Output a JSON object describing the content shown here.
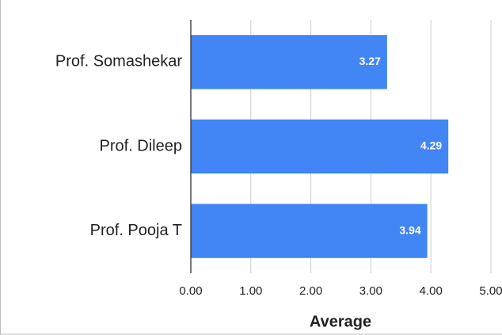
{
  "chart_data": {
    "type": "bar",
    "orientation": "horizontal",
    "x_label": "Average",
    "categories": [
      "Prof. Somashekar",
      "Prof. Dileep",
      "Prof. Pooja T"
    ],
    "values": [
      3.27,
      4.29,
      3.94
    ],
    "color": "#4285f4",
    "xlim": [
      0,
      5
    ],
    "xticks": [
      {
        "value": 0,
        "label": "0.00"
      },
      {
        "value": 1,
        "label": "1.00"
      },
      {
        "value": 2,
        "label": "2.00"
      },
      {
        "value": 3,
        "label": "3.00"
      },
      {
        "value": 4,
        "label": "4.00"
      },
      {
        "value": 5,
        "label": "5.00"
      }
    ],
    "grid": true
  }
}
